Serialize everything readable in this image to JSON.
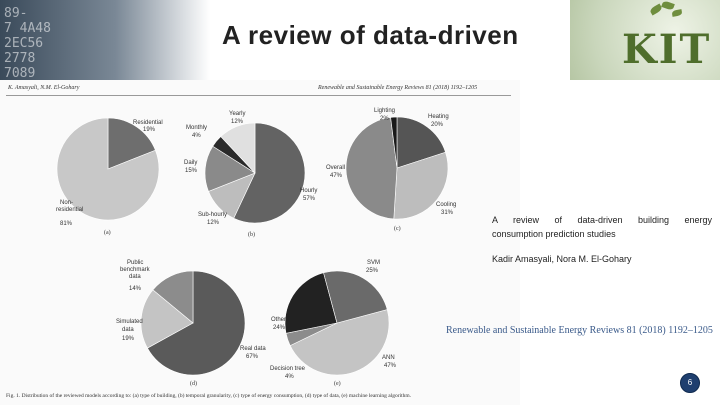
{
  "slide": {
    "title": "A review of data-driven",
    "logo": "KIT",
    "background_digits": "89-\n7 4A48\n2EC56\n2778\n7089",
    "page_number": "6"
  },
  "reference": {
    "title_line1": "A review of data-driven building energy",
    "title_line2": "consumption prediction studies",
    "authors": "Kadir Amasyali, Nora M. El-Gohary",
    "journal": "Renewable and Sustainable Energy Reviews 81 (2018) 1192–1205"
  },
  "figure": {
    "header_left": "K. Amasyali, N.M. El-Gohary",
    "header_right": "Renewable and Sustainable Energy Reviews 81 (2018) 1192–1205",
    "caption": "Fig. 1. Distribution of the reviewed models according to: (a) type of building, (b) temporal granularity, (c) type of energy consumption, (d) type of data, (e) machine learning algorithm."
  },
  "chart_data": [
    {
      "type": "pie",
      "panel": "(a)",
      "labels": [
        "Residential",
        "Non-residential"
      ],
      "values": [
        19,
        81
      ],
      "colors": [
        "#6e6e6e",
        "#c8c8c8"
      ]
    },
    {
      "type": "pie",
      "panel": "(b)",
      "labels": [
        "Hourly",
        "Sub-hourly",
        "Daily",
        "Monthly",
        "Yearly"
      ],
      "values": [
        57,
        12,
        15,
        4,
        12
      ],
      "colors": [
        "#636363",
        "#bdbdbd",
        "#8a8a8a",
        "#2a2a2a",
        "#e0e0e0"
      ]
    },
    {
      "type": "pie",
      "panel": "(c)",
      "labels": [
        "Heating",
        "Cooling",
        "Overall",
        "Lighting"
      ],
      "values": [
        20,
        31,
        47,
        2
      ],
      "colors": [
        "#555555",
        "#bdbdbd",
        "#8a8a8a",
        "#1a1a1a"
      ]
    },
    {
      "type": "pie",
      "panel": "(d)",
      "labels": [
        "Real data",
        "Simulated data",
        "Public benchmark data"
      ],
      "values": [
        67,
        19,
        14
      ],
      "colors": [
        "#5a5a5a",
        "#c4c4c4",
        "#8c8c8c"
      ]
    },
    {
      "type": "pie",
      "panel": "(e)",
      "labels": [
        "ANN",
        "Decision tree",
        "Other",
        "SVM"
      ],
      "values": [
        47,
        4,
        24,
        25
      ],
      "colors": [
        "#c4c4c4",
        "#8c8c8c",
        "#222222",
        "#6a6a6a"
      ]
    }
  ],
  "pie_labels": [
    {
      "t1": "Residential",
      "t2": "19%"
    },
    {
      "t1": "Non-",
      "t2": "residential",
      "t3": "81%"
    },
    {
      "t1": "Yearly",
      "t2": "12%"
    },
    {
      "t1": "Monthly",
      "t2": "4%"
    },
    {
      "t1": "Daily",
      "t2": "15%"
    },
    {
      "t1": "Hourly",
      "t2": "57%"
    },
    {
      "t1": "Sub-hourly",
      "t2": "12%"
    },
    {
      "t1": "Lighting",
      "t2": "2%"
    },
    {
      "t1": "Heating",
      "t2": "20%"
    },
    {
      "t1": "Overall",
      "t2": "47%"
    },
    {
      "t1": "Cooling",
      "t2": "31%"
    },
    {
      "t1": "Public",
      "t2": "benchmark",
      "t3": "data",
      "t4": "14%"
    },
    {
      "t1": "Simulated",
      "t2": "data",
      "t3": "19%"
    },
    {
      "t1": "Real data",
      "t2": "67%"
    },
    {
      "t1": "SVM",
      "t2": "25%"
    },
    {
      "t1": "Other",
      "t2": "24%"
    },
    {
      "t1": "ANN",
      "t2": "47%"
    },
    {
      "t1": "Decision tree",
      "t2": "4%"
    }
  ]
}
